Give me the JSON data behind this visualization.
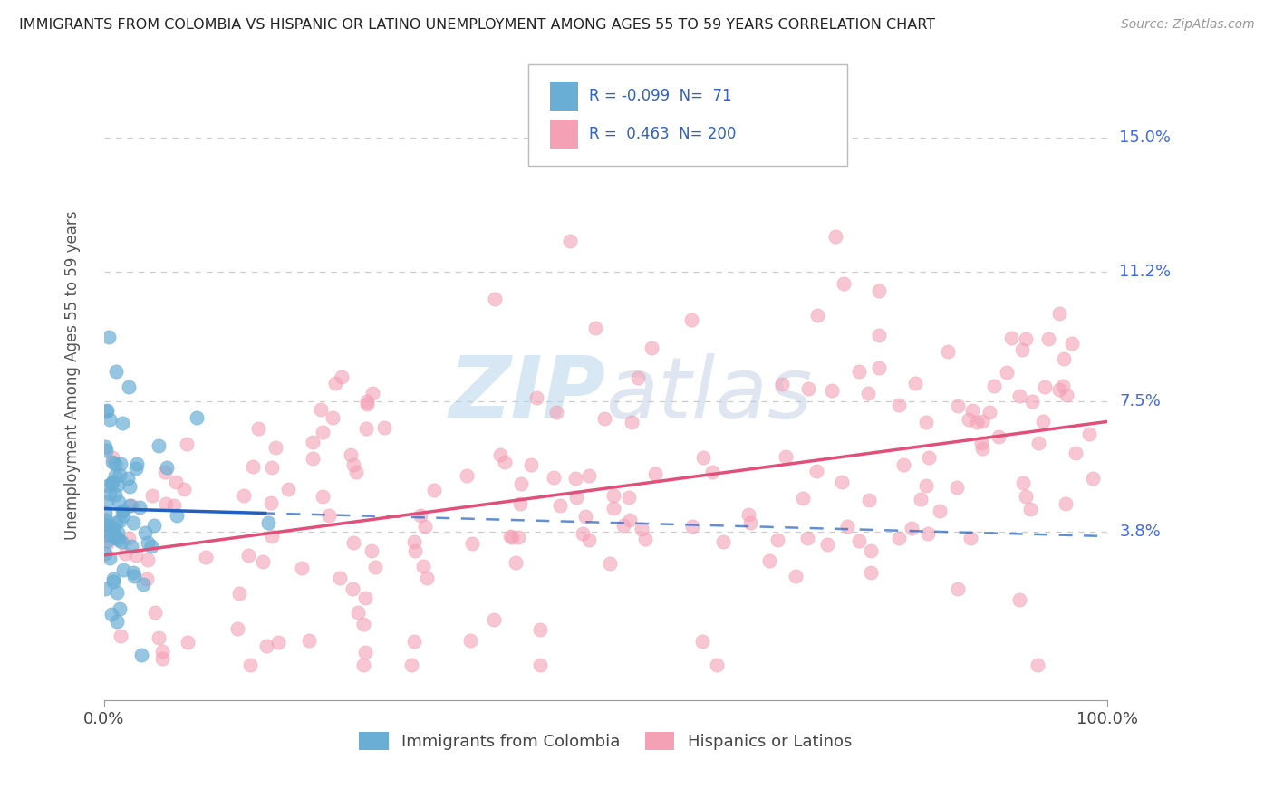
{
  "title": "IMMIGRANTS FROM COLOMBIA VS HISPANIC OR LATINO UNEMPLOYMENT AMONG AGES 55 TO 59 YEARS CORRELATION CHART",
  "source": "Source: ZipAtlas.com",
  "ylabel": "Unemployment Among Ages 55 to 59 years",
  "xlim": [
    0.0,
    1.0
  ],
  "ylim": [
    -0.01,
    0.175
  ],
  "yticks": [
    0.038,
    0.075,
    0.112,
    0.15
  ],
  "ytick_labels": [
    "3.8%",
    "7.5%",
    "11.2%",
    "15.0%"
  ],
  "xtick_labels": [
    "0.0%",
    "100.0%"
  ],
  "xticks": [
    0.0,
    1.0
  ],
  "R_colombia": -0.099,
  "N_colombia": 71,
  "R_hispanic": 0.463,
  "N_hispanic": 200,
  "scatter_color_colombia": "#6aaed6",
  "scatter_color_hispanic": "#f4a0b5",
  "line_color_colombia": "#2060c0",
  "line_color_hispanic": "#e0507a",
  "legend_label_colombia": "Immigrants from Colombia",
  "legend_label_hispanic": "Hispanics or Latinos",
  "watermark_zip": "ZIP",
  "watermark_atlas": "atlas",
  "background_color": "#FFFFFF",
  "grid_color": "#cccccc"
}
